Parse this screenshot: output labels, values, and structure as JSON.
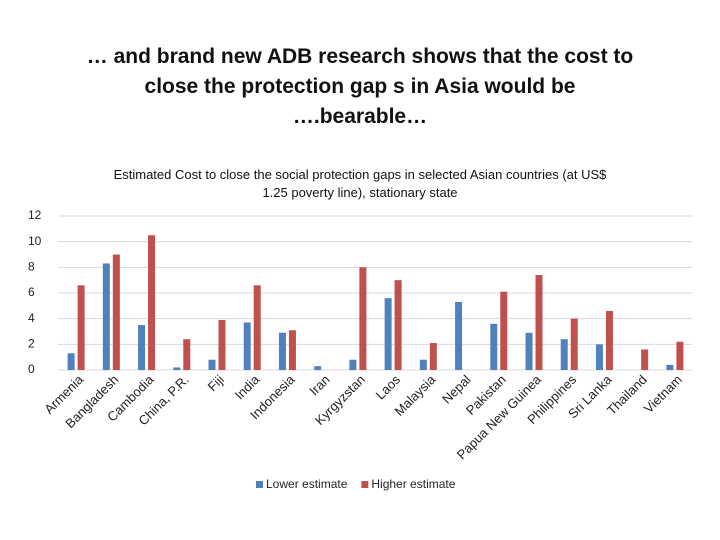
{
  "chart_data": {
    "type": "bar",
    "title": "… and brand new ADB research shows that the cost to close the protection gap s in Asia would be ….bearable…",
    "subtitle": "Estimated Cost to close  the social protection gaps in selected Asian countries (at US$ 1.25 poverty line), stationary state",
    "categories": [
      "Armenia",
      "Bangladesh",
      "Cambodia",
      "China, P.R.",
      "Fiji",
      "India",
      "Indonesia",
      "Iran",
      "Kyrgyzstan",
      "Laos",
      "Malaysia",
      "Nepal",
      "Pakistan",
      "Papua New Guinea",
      "Philippines",
      "Sri Lanka",
      "Thailand",
      "Vietnam"
    ],
    "series": [
      {
        "name": "Lower estimate",
        "color": "#4f81bd",
        "values": [
          1.3,
          8.3,
          3.5,
          0.2,
          0.8,
          3.7,
          2.9,
          0.3,
          0.8,
          5.6,
          0.8,
          5.3,
          3.6,
          2.9,
          2.4,
          2.0,
          0,
          0.4
        ]
      },
      {
        "name": "Higher estimate",
        "color": "#c0504d",
        "values": [
          6.6,
          9.0,
          10.5,
          2.4,
          3.9,
          6.6,
          3.1,
          0,
          8.0,
          7.0,
          2.1,
          0,
          6.1,
          7.4,
          4.0,
          4.6,
          1.6,
          2.2
        ]
      }
    ],
    "ylim": [
      0,
      12
    ],
    "yticks": [
      0,
      2,
      4,
      6,
      8,
      10,
      12
    ],
    "grid": true
  }
}
